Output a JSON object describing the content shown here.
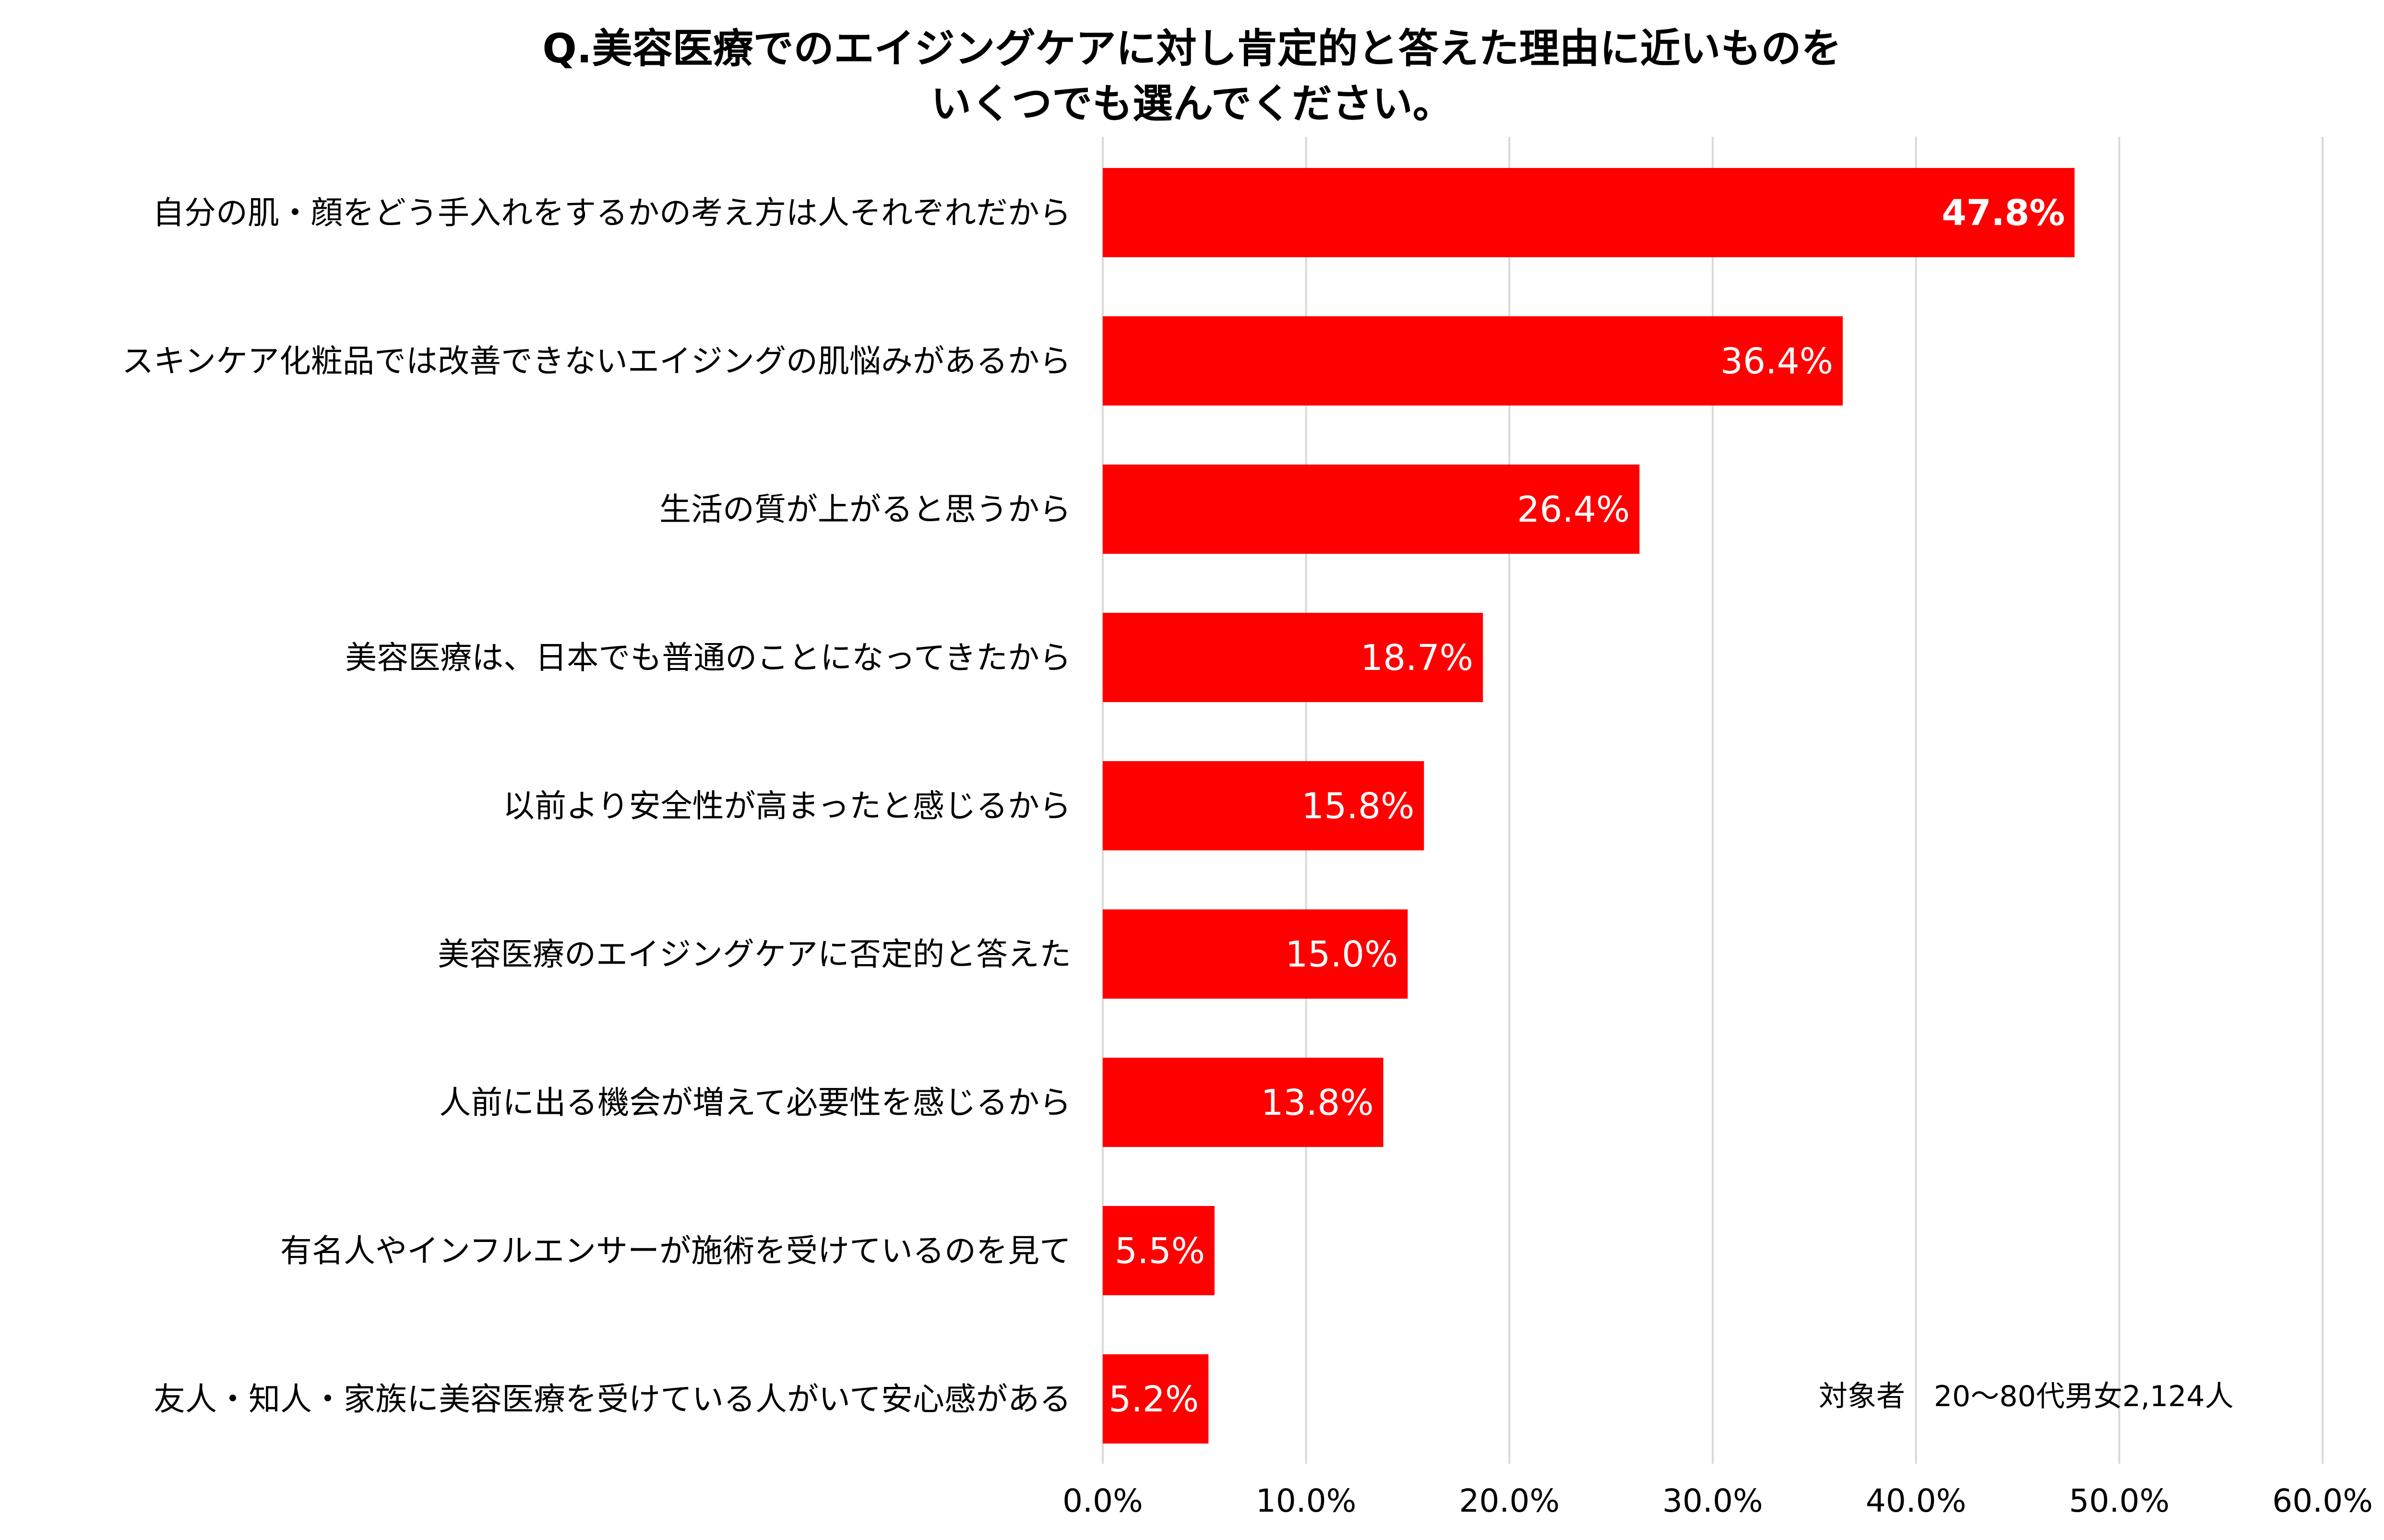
{
  "chart_data": {
    "type": "bar",
    "orientation": "horizontal",
    "title_lines": [
      "Q.美容医療でのエイジングケアに対し肯定的と答えた理由に近いものを",
      "いくつでも選んでください。"
    ],
    "categories": [
      "自分の肌・顔をどう手入れをするかの考え方は人それぞれだから",
      "スキンケア化粧品では改善できないエイジングの肌悩みがあるから",
      "生活の質が上がると思うから",
      "美容医療は、日本でも普通のことになってきたから",
      "以前より安全性が高まったと感じるから",
      "美容医療のエイジングケアに否定的と答えた",
      "人前に出る機会が増えて必要性を感じるから",
      "有名人やインフルエンサーが施術を受けているのを見て",
      "友人・知人・家族に美容医療を受けている人がいて安心感がある"
    ],
    "values": [
      47.8,
      36.4,
      26.4,
      18.7,
      15.8,
      15.0,
      13.8,
      5.5,
      5.2
    ],
    "value_labels": [
      "47.8%",
      "36.4%",
      "26.4%",
      "18.7%",
      "15.8%",
      "15.0%",
      "13.8%",
      "5.5%",
      "5.2%"
    ],
    "xlim": [
      0,
      60
    ],
    "ticks": [
      0,
      10,
      20,
      30,
      40,
      50,
      60
    ],
    "tick_labels": [
      "0.0%",
      "10.0%",
      "20.0%",
      "30.0%",
      "40.0%",
      "50.0%",
      "60.0%"
    ],
    "bar_color": "#ff0000",
    "grid": true,
    "note": "対象者　20〜80代男女2,124人"
  }
}
